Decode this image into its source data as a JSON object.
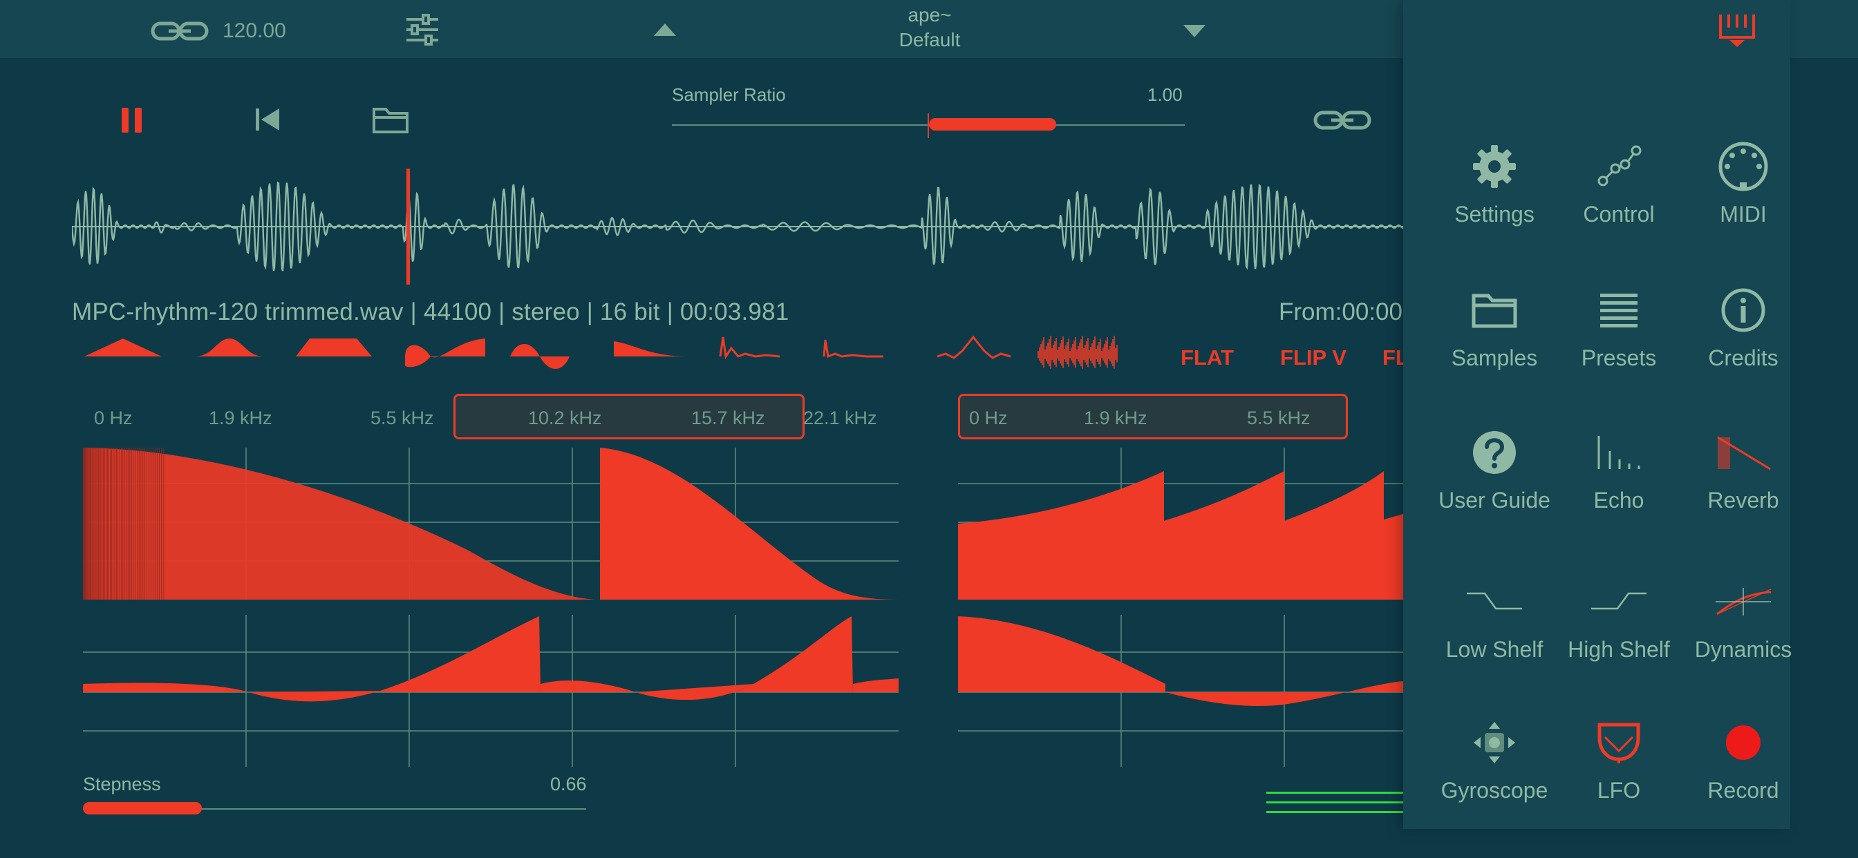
{
  "header": {
    "bpm": "120.00",
    "plugin_name": "ape~",
    "preset": "Default"
  },
  "transport": {
    "sampler_ratio_label": "Sampler Ratio",
    "sampler_ratio_value": "1.00",
    "sampler_ratio_level": 0.5
  },
  "file_info": "MPC-rhythm-120 trimmed.wav | 44100 | stereo | 16 bit | 00:03.981",
  "from_label": "From:00:00",
  "shape_buttons": {
    "flat": "FLAT",
    "flip_v": "FLIP V",
    "flip_h_partial": "FL"
  },
  "eq_left": {
    "freq_labels": [
      "0 Hz",
      "1.9 kHz",
      "5.5 kHz",
      "10.2 kHz",
      "15.7 kHz",
      "22.1 kHz"
    ]
  },
  "eq_right": {
    "freq_labels": [
      "0 Hz",
      "1.9 kHz",
      "5.5 kHz"
    ]
  },
  "stepness": {
    "label": "Stepness",
    "value": "0.66",
    "level": 0.24
  },
  "menu": {
    "items": [
      {
        "label": "Settings",
        "icon": "gear-icon"
      },
      {
        "label": "Control",
        "icon": "nodes-icon"
      },
      {
        "label": "MIDI",
        "icon": "midi-din-icon"
      },
      {
        "label": "Samples",
        "icon": "folder-icon"
      },
      {
        "label": "Presets",
        "icon": "list-icon"
      },
      {
        "label": "Credits",
        "icon": "info-icon"
      },
      {
        "label": "User Guide",
        "icon": "question-icon"
      },
      {
        "label": "Echo",
        "icon": "echo-icon"
      },
      {
        "label": "Reverb",
        "icon": "reverb-icon"
      },
      {
        "label": "Low Shelf",
        "icon": "low-shelf-icon"
      },
      {
        "label": "High Shelf",
        "icon": "high-shelf-icon"
      },
      {
        "label": "Dynamics",
        "icon": "dynamics-icon"
      },
      {
        "label": "Gyroscope",
        "icon": "gyroscope-icon"
      },
      {
        "label": "LFO",
        "icon": "lfo-icon"
      },
      {
        "label": "Record",
        "icon": "record-icon"
      }
    ]
  },
  "colors": {
    "background": "#0e3a48",
    "panel": "#164652",
    "accent": "#ee3a26",
    "text": "#8fb9a4",
    "waveform": "#8fb9a4"
  }
}
